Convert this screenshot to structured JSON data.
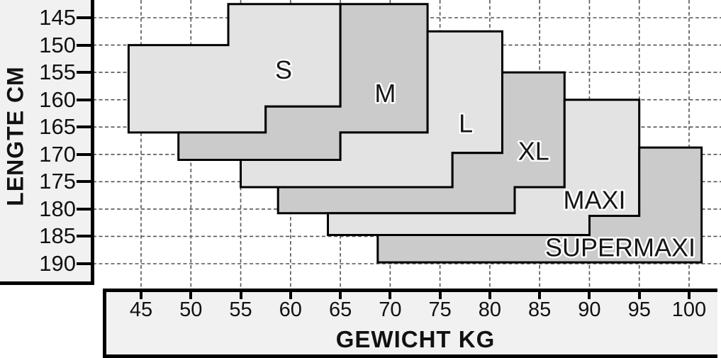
{
  "chart_data": {
    "type": "area",
    "subtype": "stepped-size-regions",
    "title": "",
    "xlabel": "GEWICHT KG",
    "ylabel": "LENGTE CM",
    "x_unit": "kg",
    "y_unit": "cm",
    "x_ticks": [
      45,
      50,
      55,
      60,
      65,
      70,
      75,
      80,
      85,
      90,
      95,
      100
    ],
    "y_ticks": [
      145,
      150,
      155,
      160,
      165,
      170,
      175,
      180,
      185,
      190
    ],
    "xlim": [
      40.2,
      103.2
    ],
    "ylim": [
      141.7,
      194.5
    ],
    "y_inverted": true,
    "grid": true,
    "legend_position": "none",
    "regions": [
      {
        "name": "S",
        "shade": "light",
        "label_at": [
          59.3,
          154.5
        ],
        "vertices": [
          [
            43.75,
            150
          ],
          [
            53.75,
            150
          ],
          [
            53.75,
            142.5
          ],
          [
            65,
            142.5
          ],
          [
            65,
            161.25
          ],
          [
            57.5,
            161.25
          ],
          [
            57.5,
            166
          ],
          [
            43.75,
            166
          ]
        ]
      },
      {
        "name": "M",
        "shade": "dark",
        "label_at": [
          69.5,
          158.8
        ],
        "vertices": [
          [
            65,
            142.5
          ],
          [
            73.75,
            142.5
          ],
          [
            73.75,
            166
          ],
          [
            65,
            166
          ],
          [
            65,
            171
          ],
          [
            48.75,
            171
          ],
          [
            48.75,
            166
          ],
          [
            57.5,
            166
          ],
          [
            57.5,
            161.25
          ],
          [
            65,
            161.25
          ]
        ]
      },
      {
        "name": "L",
        "shade": "light",
        "label_at": [
          77.6,
          164.3
        ],
        "vertices": [
          [
            73.75,
            147.5
          ],
          [
            81.25,
            147.5
          ],
          [
            81.25,
            169.75
          ],
          [
            76.25,
            169.75
          ],
          [
            76.25,
            176
          ],
          [
            55,
            176
          ],
          [
            55,
            171
          ],
          [
            65,
            171
          ],
          [
            65,
            166
          ],
          [
            73.75,
            166
          ]
        ]
      },
      {
        "name": "XL",
        "shade": "dark",
        "label_at": [
          84.4,
          169.4
        ],
        "vertices": [
          [
            81.25,
            155
          ],
          [
            87.5,
            155
          ],
          [
            87.5,
            176
          ],
          [
            82.5,
            176
          ],
          [
            82.5,
            180.75
          ],
          [
            58.75,
            180.75
          ],
          [
            58.75,
            176
          ],
          [
            76.25,
            176
          ],
          [
            76.25,
            169.75
          ],
          [
            81.25,
            169.75
          ]
        ]
      },
      {
        "name": "MAXI",
        "shade": "light",
        "label_at": [
          90.5,
          178.3
        ],
        "vertices": [
          [
            87.5,
            160
          ],
          [
            95,
            160
          ],
          [
            95,
            181.25
          ],
          [
            90,
            181.25
          ],
          [
            90,
            184.75
          ],
          [
            63.75,
            184.75
          ],
          [
            63.75,
            180.75
          ],
          [
            82.5,
            180.75
          ],
          [
            82.5,
            176
          ],
          [
            87.5,
            176
          ]
        ]
      },
      {
        "name": "SUPERMAXI",
        "shade": "dark",
        "label_at": [
          93.1,
          187.0
        ],
        "vertices": [
          [
            95,
            168.75
          ],
          [
            101.25,
            168.75
          ],
          [
            101.25,
            189.75
          ],
          [
            68.75,
            189.75
          ],
          [
            68.75,
            184.75
          ],
          [
            90,
            184.75
          ],
          [
            90,
            181.25
          ],
          [
            95,
            181.25
          ]
        ]
      }
    ]
  },
  "axes": {
    "x_title": "GEWICHT KG",
    "y_title": "LENGTE CM"
  },
  "colors": {
    "region_light": "#e3e3e3",
    "region_dark": "#cbcbcb",
    "panel": "#f1f1f1",
    "region_border": "#000000",
    "grid": "#555555",
    "text": "#111111",
    "label_halo": "#ffffff"
  }
}
